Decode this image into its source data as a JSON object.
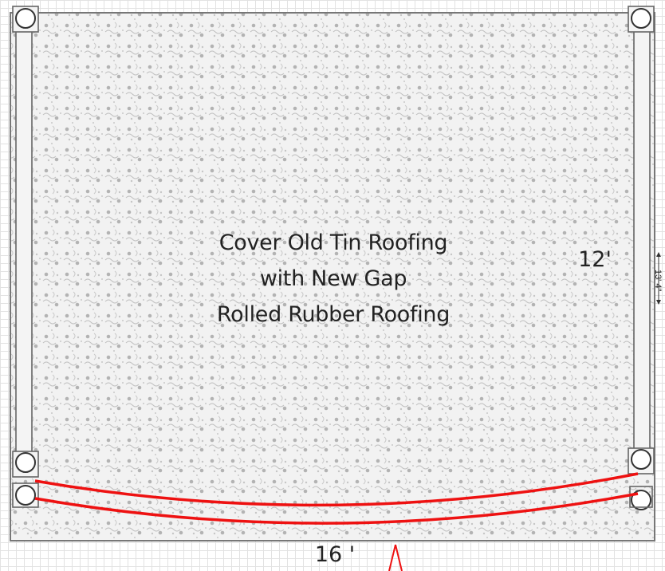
{
  "diagram": {
    "main_label_lines": [
      "Cover Old Tin Roofing",
      "with New Gap",
      "Rolled Rubber Roofing"
    ],
    "height_label": "12'",
    "width_label": "16 '",
    "side_dimension": "13' 4\"",
    "colors": {
      "gutter": "#ee1111",
      "outline": "#777777",
      "fill": "#f2f2f2",
      "pattern": "#b3b3b3",
      "grid": "#e2e2e2"
    }
  }
}
